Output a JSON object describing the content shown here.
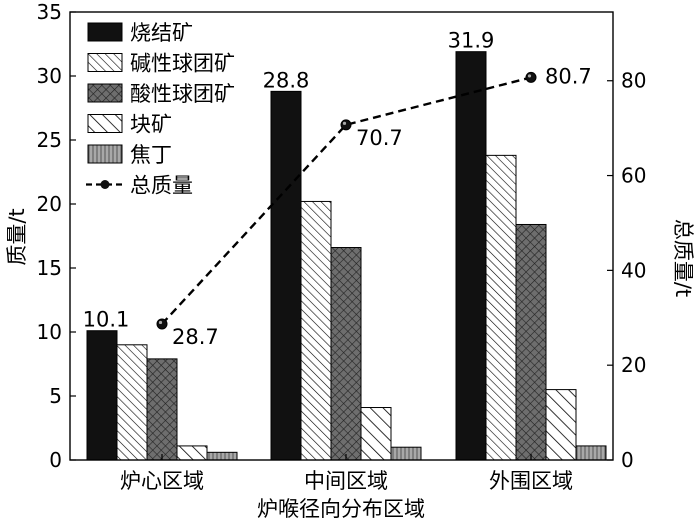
{
  "chart_data": {
    "type": "bar",
    "categories": [
      "炉心区域",
      "中间区域",
      "外围区域"
    ],
    "xlabel": "炉喉径向分布区域",
    "ylabel": "质量/t",
    "y2label": "总质量/t",
    "ylim": [
      0,
      35
    ],
    "y2lim": [
      0,
      94.5
    ],
    "yticks": [
      0,
      5,
      10,
      15,
      20,
      25,
      30,
      35
    ],
    "y2ticks": [
      0,
      20,
      40,
      60,
      80
    ],
    "legend_position": "top-left",
    "grid": false,
    "series": [
      {
        "name": "烧结矿",
        "values": [
          10.1,
          28.8,
          31.9
        ],
        "pattern": "solid",
        "color": "#111111",
        "labels": [
          "10.1",
          "28.8",
          "31.9"
        ]
      },
      {
        "name": "碱性球团矿",
        "values": [
          9.0,
          20.2,
          23.8
        ],
        "pattern": "diag-light",
        "color": "#ffffff"
      },
      {
        "name": "酸性球团矿",
        "values": [
          7.9,
          16.6,
          18.4
        ],
        "pattern": "crosshatch",
        "color": "#6e6e6e"
      },
      {
        "name": "块矿",
        "values": [
          1.1,
          4.1,
          5.5
        ],
        "pattern": "diag-wide",
        "color": "#ffffff"
      },
      {
        "name": "焦丁",
        "values": [
          0.6,
          1.0,
          1.1
        ],
        "pattern": "vertical",
        "color": "#9a9a9a"
      }
    ],
    "line": {
      "name": "总质量",
      "axis": "right",
      "values": [
        28.7,
        70.7,
        80.7
      ],
      "labels": [
        "28.7",
        "70.7",
        "80.7"
      ],
      "style": "dashed",
      "marker": "ball",
      "color": "#000000"
    }
  }
}
